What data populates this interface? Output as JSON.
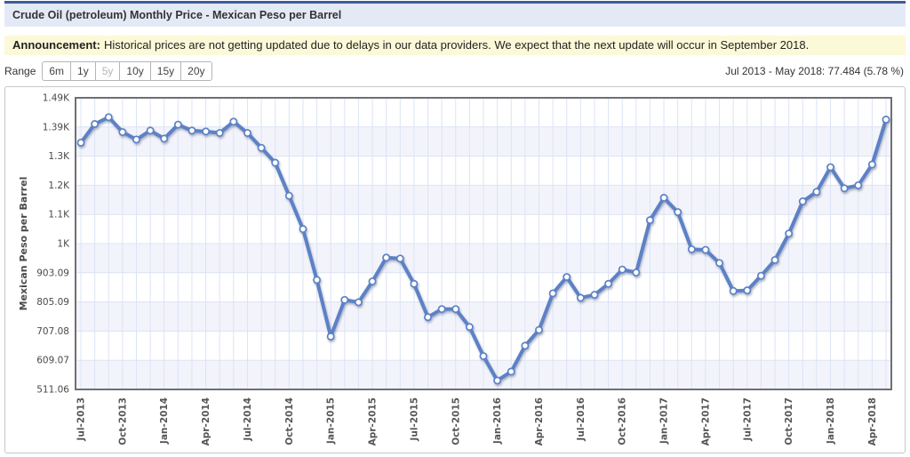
{
  "title_bar": {
    "title": "Crude Oil (petroleum) Monthly Price - Mexican Peso per Barrel"
  },
  "announcement": {
    "label": "Announcement:",
    "text": "Historical prices are not getting updated due to delays in our data providers. We expect that the next update will occur in September 2018."
  },
  "range_selector": {
    "label": "Range",
    "options": [
      {
        "label": "6m",
        "state": "enabled"
      },
      {
        "label": "1y",
        "state": "enabled"
      },
      {
        "label": "5y",
        "state": "selected"
      },
      {
        "label": "10y",
        "state": "enabled"
      },
      {
        "label": "15y",
        "state": "enabled"
      },
      {
        "label": "20y",
        "state": "enabled"
      }
    ]
  },
  "summary": {
    "text": "Jul 2013 - May 2018: 77.484 (5.78 %)"
  },
  "colors": {
    "accent_border": "#3e5c9a",
    "title_bg": "#e4e9f6",
    "announcement_bg": "#fcf9d8",
    "line": "#5c81c6",
    "marker_fill": "#ffffff",
    "grid": "#dbe3f6",
    "band": "#f3f4fb",
    "plot_border": "#6f6f76",
    "axis_text": "#4a4a4a",
    "tick_text": "#555555"
  },
  "chart_data": {
    "type": "line",
    "title": "Crude Oil (petroleum) Monthly Price - Mexican Peso per Barrel",
    "xlabel": "",
    "ylabel": "Mexican Peso per Barrel",
    "grid": true,
    "marker": "circle",
    "legend_position": "none",
    "ylim": [
      511.06,
      1491.12
    ],
    "y_ticks": [
      {
        "value": 1491.12,
        "label": "1.49K"
      },
      {
        "value": 1393.12,
        "label": "1.39K"
      },
      {
        "value": 1295.11,
        "label": "1.3K"
      },
      {
        "value": 1197.1,
        "label": "1.2K"
      },
      {
        "value": 1099.1,
        "label": "1.1K"
      },
      {
        "value": 1001.09,
        "label": "1K"
      },
      {
        "value": 903.09,
        "label": "903.09"
      },
      {
        "value": 805.09,
        "label": "805.09"
      },
      {
        "value": 707.08,
        "label": "707.08"
      },
      {
        "value": 609.07,
        "label": "609.07"
      },
      {
        "value": 511.06,
        "label": "511.06"
      }
    ],
    "x_tick_every": 3,
    "x": [
      "Jul-2013",
      "Aug-2013",
      "Sep-2013",
      "Oct-2013",
      "Nov-2013",
      "Dec-2013",
      "Jan-2014",
      "Feb-2014",
      "Mar-2014",
      "Apr-2014",
      "May-2014",
      "Jun-2014",
      "Jul-2014",
      "Aug-2014",
      "Sep-2014",
      "Oct-2014",
      "Nov-2014",
      "Dec-2014",
      "Jan-2015",
      "Feb-2015",
      "Mar-2015",
      "Apr-2015",
      "May-2015",
      "Jun-2015",
      "Jul-2015",
      "Aug-2015",
      "Sep-2015",
      "Oct-2015",
      "Nov-2015",
      "Dec-2015",
      "Jan-2016",
      "Feb-2016",
      "Mar-2016",
      "Apr-2016",
      "May-2016",
      "Jun-2016",
      "Jul-2016",
      "Aug-2016",
      "Sep-2016",
      "Oct-2016",
      "Nov-2016",
      "Dec-2016",
      "Jan-2017",
      "Feb-2017",
      "Mar-2017",
      "Apr-2017",
      "May-2017",
      "Jun-2017",
      "Jul-2017",
      "Aug-2017",
      "Sep-2017",
      "Oct-2017",
      "Nov-2017",
      "Dec-2017",
      "Jan-2018",
      "Feb-2018",
      "Mar-2018",
      "Apr-2018",
      "May-2018"
    ],
    "series": [
      {
        "name": "Crude Oil Monthly Price (Mexican Peso per Barrel)",
        "values": [
          1340.46,
          1403,
          1426,
          1376,
          1351,
          1381,
          1354,
          1401,
          1381,
          1378,
          1373,
          1411,
          1373,
          1323,
          1273,
          1162,
          1050,
          879,
          689,
          812,
          804,
          874,
          954,
          951,
          866,
          754,
          781,
          781,
          721,
          623,
          541,
          571,
          658,
          711,
          834,
          889,
          819,
          829,
          866,
          914,
          904,
          1080,
          1155,
          1107,
          982,
          980,
          936,
          842,
          844,
          893,
          946,
          1035,
          1143,
          1175,
          1258,
          1187,
          1197,
          1267,
          1417.94
        ]
      }
    ]
  }
}
